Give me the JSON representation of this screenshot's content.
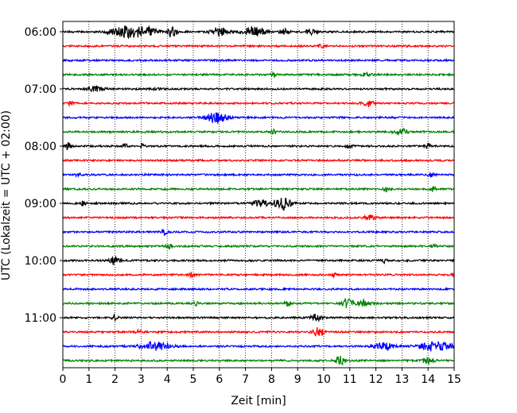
{
  "chart_data": {
    "type": "line",
    "xlabel": "Zeit  [min]",
    "ylabel": "UTC (Lokalzeit = UTC + 02:00)",
    "xlim": [
      0,
      15
    ],
    "xticks": [
      "0",
      "1",
      "2",
      "3",
      "4",
      "5",
      "6",
      "7",
      "8",
      "9",
      "10",
      "11",
      "12",
      "13",
      "14",
      "15"
    ],
    "yticks": [
      "06:00",
      "07:00",
      "08:00",
      "09:00",
      "10:00",
      "11:00"
    ],
    "x_grid": true,
    "trace_minutes": 15,
    "start_time": "06:00",
    "trace_colors": [
      "#000000",
      "#ff0000",
      "#0000ff",
      "#008000"
    ],
    "traces": [
      {
        "time": "06:00",
        "color": "#000000",
        "bursts": [
          [
            2.3,
            0.55,
            6
          ],
          [
            3.1,
            0.5,
            6
          ],
          [
            4.2,
            0.15,
            9
          ],
          [
            6.0,
            0.3,
            6
          ],
          [
            7.3,
            0.4,
            6
          ],
          [
            8.5,
            0.2,
            3
          ],
          [
            9.5,
            0.2,
            3
          ]
        ]
      },
      {
        "time": "06:15",
        "color": "#ff0000",
        "bursts": [
          [
            9.9,
            0.1,
            3
          ]
        ]
      },
      {
        "time": "06:30",
        "color": "#0000ff",
        "bursts": []
      },
      {
        "time": "06:45",
        "color": "#008000",
        "bursts": [
          [
            8.1,
            0.1,
            3
          ],
          [
            11.6,
            0.2,
            3
          ]
        ]
      },
      {
        "time": "07:00",
        "color": "#000000",
        "bursts": [
          [
            1.3,
            0.3,
            4
          ],
          [
            3.6,
            0.1,
            3
          ]
        ]
      },
      {
        "time": "07:15",
        "color": "#ff0000",
        "bursts": [
          [
            0.3,
            0.1,
            3
          ],
          [
            11.7,
            0.2,
            4
          ]
        ]
      },
      {
        "time": "07:30",
        "color": "#0000ff",
        "bursts": [
          [
            5.9,
            0.4,
            7
          ]
        ]
      },
      {
        "time": "07:45",
        "color": "#008000",
        "bursts": [
          [
            8.1,
            0.1,
            3
          ],
          [
            13.0,
            0.25,
            4
          ]
        ]
      },
      {
        "time": "08:00",
        "color": "#000000",
        "bursts": [
          [
            0.2,
            0.1,
            4
          ],
          [
            2.4,
            0.1,
            3
          ],
          [
            3.0,
            0.1,
            3
          ],
          [
            11.0,
            0.1,
            3
          ],
          [
            14.0,
            0.1,
            3
          ]
        ]
      },
      {
        "time": "08:15",
        "color": "#ff0000",
        "bursts": []
      },
      {
        "time": "08:30",
        "color": "#0000ff",
        "bursts": [
          [
            0.6,
            0.1,
            3
          ],
          [
            14.1,
            0.1,
            3
          ]
        ]
      },
      {
        "time": "08:45",
        "color": "#008000",
        "bursts": [
          [
            12.4,
            0.1,
            3
          ],
          [
            14.2,
            0.1,
            3
          ]
        ]
      },
      {
        "time": "09:00",
        "color": "#000000",
        "bursts": [
          [
            0.8,
            0.1,
            3
          ],
          [
            7.6,
            0.3,
            4
          ],
          [
            8.4,
            0.3,
            9
          ]
        ]
      },
      {
        "time": "09:15",
        "color": "#ff0000",
        "bursts": [
          [
            11.8,
            0.2,
            4
          ]
        ]
      },
      {
        "time": "09:30",
        "color": "#0000ff",
        "bursts": [
          [
            3.9,
            0.1,
            3
          ]
        ]
      },
      {
        "time": "09:45",
        "color": "#008000",
        "bursts": [
          [
            4.1,
            0.1,
            3
          ],
          [
            14.2,
            0.1,
            3
          ]
        ]
      },
      {
        "time": "10:00",
        "color": "#000000",
        "bursts": [
          [
            2.0,
            0.2,
            5
          ],
          [
            12.3,
            0.1,
            3
          ]
        ]
      },
      {
        "time": "10:15",
        "color": "#ff0000",
        "bursts": [
          [
            4.9,
            0.1,
            3
          ],
          [
            10.4,
            0.1,
            3
          ],
          [
            15.0,
            0.1,
            3
          ]
        ]
      },
      {
        "time": "10:30",
        "color": "#0000ff",
        "bursts": []
      },
      {
        "time": "10:45",
        "color": "#008000",
        "bursts": [
          [
            5.1,
            0.1,
            3
          ],
          [
            8.6,
            0.1,
            3
          ],
          [
            10.9,
            0.2,
            6
          ],
          [
            11.5,
            0.3,
            4
          ]
        ]
      },
      {
        "time": "11:00",
        "color": "#000000",
        "bursts": [
          [
            2.0,
            0.1,
            3
          ],
          [
            9.7,
            0.2,
            4
          ]
        ]
      },
      {
        "time": "11:15",
        "color": "#ff0000",
        "bursts": [
          [
            2.9,
            0.1,
            3
          ],
          [
            9.8,
            0.2,
            6
          ]
        ]
      },
      {
        "time": "11:30",
        "color": "#0000ff",
        "bursts": [
          [
            3.5,
            0.6,
            5
          ],
          [
            12.3,
            0.4,
            4
          ],
          [
            14.3,
            0.6,
            6
          ]
        ]
      },
      {
        "time": "11:45",
        "color": "#008000",
        "bursts": [
          [
            10.6,
            0.2,
            6
          ],
          [
            14.0,
            0.2,
            4
          ]
        ]
      }
    ]
  }
}
